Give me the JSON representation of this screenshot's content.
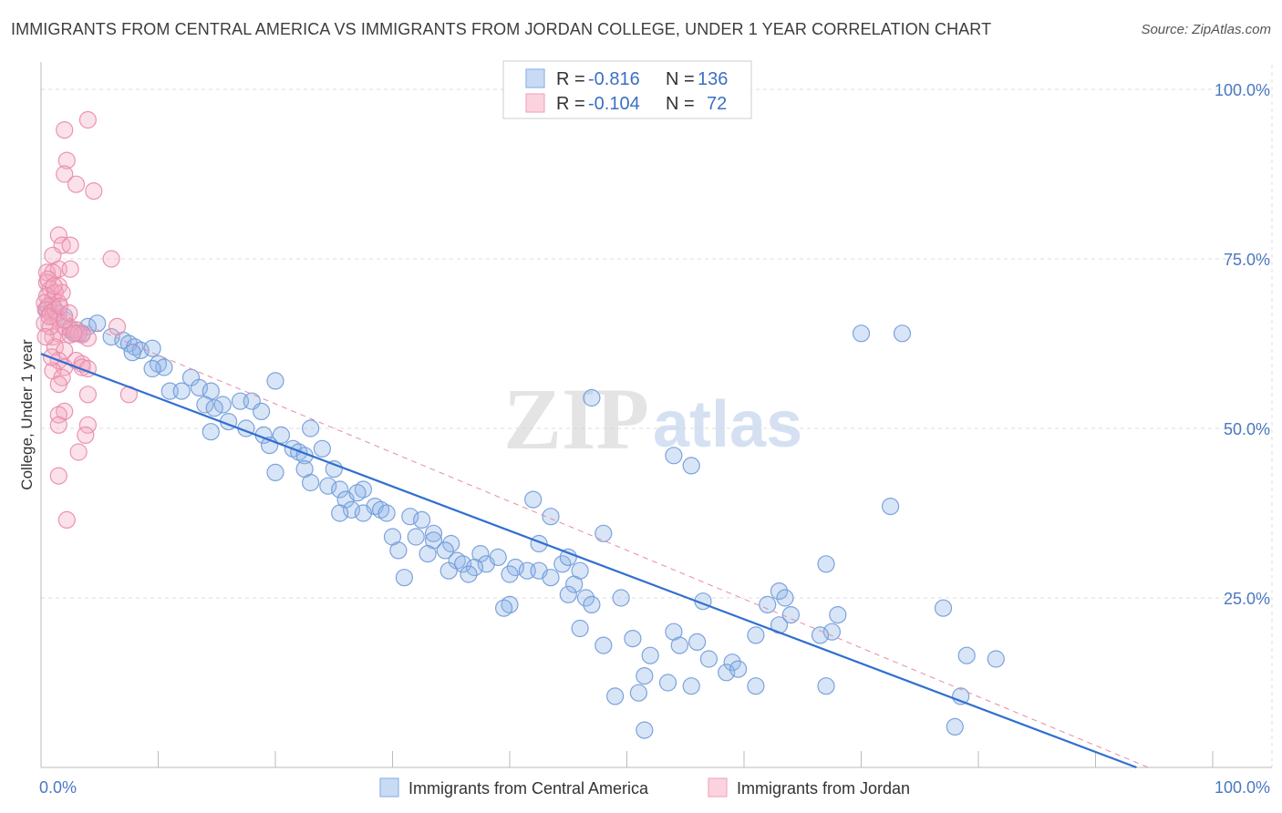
{
  "title": "IMMIGRANTS FROM CENTRAL AMERICA VS IMMIGRANTS FROM JORDAN COLLEGE, UNDER 1 YEAR CORRELATION CHART",
  "source": "Source: ZipAtlas.com",
  "watermark": {
    "zip": "ZIP",
    "atlas": "atlas"
  },
  "chart_data": {
    "type": "scatter",
    "xlabel": "",
    "ylabel": "College, Under 1 year",
    "xlim": [
      0,
      100
    ],
    "ylim": [
      0,
      100
    ],
    "x_tick_labels": [
      {
        "value": 0,
        "label": "0.0%"
      },
      {
        "value": 100,
        "label": "100.0%"
      }
    ],
    "y_tick_labels": [
      {
        "value": 100,
        "label": "100.0%"
      },
      {
        "value": 75,
        "label": "75.0%"
      },
      {
        "value": 50,
        "label": "50.0%"
      },
      {
        "value": 25,
        "label": "25.0%"
      }
    ],
    "grid": true,
    "legend_position": "bottom-center",
    "stats": [
      {
        "r_label": "R =",
        "r": "-0.816",
        "n_label": "N =",
        "n": "136",
        "color": "#8fb4e8"
      },
      {
        "r_label": "R =",
        "r": "-0.104",
        "n_label": "N =",
        "n": "72",
        "color": "#f4a9c0"
      }
    ],
    "series": [
      {
        "name": "Immigrants from Central America",
        "color": "#8fb4e8",
        "stroke": "#6f9ad8",
        "trend": {
          "x": [
            0,
            93.5
          ],
          "y": [
            61,
            0
          ],
          "color": "#2f6fd0",
          "style": "solid"
        },
        "points": [
          [
            0.5,
            67.5
          ],
          [
            1.0,
            68.0
          ],
          [
            1.5,
            67.0
          ],
          [
            2.0,
            66.5
          ],
          [
            2.5,
            64.5
          ],
          [
            3.0,
            64.0
          ],
          [
            4.0,
            65.0
          ],
          [
            4.8,
            65.5
          ],
          [
            3.5,
            64.0
          ],
          [
            6.0,
            63.5
          ],
          [
            7.0,
            63.0
          ],
          [
            7.5,
            62.5
          ],
          [
            8.0,
            62.0
          ],
          [
            8.5,
            61.5
          ],
          [
            9.5,
            61.8
          ],
          [
            7.8,
            61.2
          ],
          [
            10.0,
            59.5
          ],
          [
            10.5,
            59.0
          ],
          [
            9.5,
            58.8
          ],
          [
            12.8,
            57.5
          ],
          [
            13.5,
            56.0
          ],
          [
            11.0,
            55.5
          ],
          [
            12.0,
            55.5
          ],
          [
            14.5,
            55.5
          ],
          [
            20.0,
            57.0
          ],
          [
            14.0,
            53.5
          ],
          [
            15.5,
            53.5
          ],
          [
            17.0,
            54.0
          ],
          [
            18.0,
            54.0
          ],
          [
            14.8,
            53.0
          ],
          [
            18.8,
            52.5
          ],
          [
            16.0,
            51.0
          ],
          [
            17.5,
            50.0
          ],
          [
            20.5,
            49.0
          ],
          [
            14.5,
            49.5
          ],
          [
            19.0,
            49.0
          ],
          [
            23.0,
            50.0
          ],
          [
            19.5,
            47.5
          ],
          [
            21.5,
            47.0
          ],
          [
            22.0,
            46.5
          ],
          [
            22.5,
            46.0
          ],
          [
            24.0,
            47.0
          ],
          [
            20.0,
            43.5
          ],
          [
            22.5,
            44.0
          ],
          [
            25.0,
            44.0
          ],
          [
            23.0,
            42.0
          ],
          [
            24.5,
            41.5
          ],
          [
            25.5,
            41.0
          ],
          [
            27.5,
            41.0
          ],
          [
            26.0,
            39.5
          ],
          [
            27.0,
            40.5
          ],
          [
            26.5,
            38.0
          ],
          [
            28.5,
            38.5
          ],
          [
            27.5,
            37.5
          ],
          [
            29.0,
            38.0
          ],
          [
            25.5,
            37.5
          ],
          [
            29.5,
            37.5
          ],
          [
            31.5,
            37.0
          ],
          [
            32.5,
            36.5
          ],
          [
            30.0,
            34.0
          ],
          [
            32.0,
            34.0
          ],
          [
            33.5,
            34.5
          ],
          [
            33.5,
            33.5
          ],
          [
            35.0,
            33.0
          ],
          [
            30.5,
            32.0
          ],
          [
            33.0,
            31.5
          ],
          [
            34.5,
            32.0
          ],
          [
            35.5,
            30.5
          ],
          [
            36.0,
            30.0
          ],
          [
            37.5,
            31.5
          ],
          [
            38.0,
            30.0
          ],
          [
            39.0,
            31.0
          ],
          [
            40.5,
            29.5
          ],
          [
            37.0,
            29.5
          ],
          [
            34.8,
            29.0
          ],
          [
            36.5,
            28.5
          ],
          [
            31.0,
            28.0
          ],
          [
            41.5,
            29.0
          ],
          [
            40.0,
            28.5
          ],
          [
            42.5,
            29.0
          ],
          [
            42.5,
            33.0
          ],
          [
            44.5,
            30.0
          ],
          [
            45.0,
            31.0
          ],
          [
            43.5,
            28.0
          ],
          [
            46.0,
            29.0
          ],
          [
            45.5,
            27.0
          ],
          [
            42.0,
            39.5
          ],
          [
            43.5,
            37.0
          ],
          [
            48.0,
            34.5
          ],
          [
            45.0,
            25.5
          ],
          [
            46.5,
            25.0
          ],
          [
            47.0,
            24.0
          ],
          [
            49.5,
            25.0
          ],
          [
            40.0,
            24.0
          ],
          [
            39.5,
            23.5
          ],
          [
            46.0,
            20.5
          ],
          [
            48.0,
            18.0
          ],
          [
            50.5,
            19.0
          ],
          [
            54.0,
            20.0
          ],
          [
            54.5,
            18.0
          ],
          [
            56.0,
            18.5
          ],
          [
            57.0,
            16.0
          ],
          [
            52.0,
            16.5
          ],
          [
            51.5,
            13.5
          ],
          [
            53.5,
            12.5
          ],
          [
            55.5,
            12.0
          ],
          [
            59.0,
            15.5
          ],
          [
            58.5,
            14.0
          ],
          [
            59.5,
            14.5
          ],
          [
            61.0,
            12.0
          ],
          [
            51.0,
            11.0
          ],
          [
            49.0,
            10.5
          ],
          [
            51.5,
            5.5
          ],
          [
            56.5,
            24.5
          ],
          [
            61.0,
            19.5
          ],
          [
            62.0,
            24.0
          ],
          [
            63.0,
            26.0
          ],
          [
            63.5,
            25.0
          ],
          [
            63.0,
            21.0
          ],
          [
            64.0,
            22.5
          ],
          [
            67.0,
            12.0
          ],
          [
            67.5,
            20.0
          ],
          [
            68.0,
            22.5
          ],
          [
            67.0,
            30.0
          ],
          [
            54.0,
            46.0
          ],
          [
            55.5,
            44.5
          ],
          [
            47.0,
            54.5
          ],
          [
            70.0,
            64.0
          ],
          [
            73.5,
            64.0
          ],
          [
            72.5,
            38.5
          ],
          [
            77.0,
            23.5
          ],
          [
            79.0,
            16.5
          ],
          [
            81.5,
            16.0
          ],
          [
            78.5,
            10.5
          ],
          [
            78.0,
            6.0
          ],
          [
            66.5,
            19.5
          ]
        ]
      },
      {
        "name": "Immigrants from Jordan",
        "color": "#f4a9c0",
        "stroke": "#e98aa8",
        "trend": {
          "x": [
            0,
            94.5
          ],
          "y": [
            68,
            0
          ],
          "color": "#e88aa6",
          "style": "dashed"
        },
        "points": [
          [
            4.0,
            95.5
          ],
          [
            2.0,
            94.0
          ],
          [
            2.2,
            89.5
          ],
          [
            2.0,
            87.5
          ],
          [
            3.0,
            86.0
          ],
          [
            4.5,
            85.0
          ],
          [
            1.5,
            78.5
          ],
          [
            1.8,
            77.0
          ],
          [
            2.5,
            77.0
          ],
          [
            1.0,
            75.5
          ],
          [
            6.0,
            75.0
          ],
          [
            1.5,
            73.5
          ],
          [
            2.5,
            73.5
          ],
          [
            0.5,
            73.0
          ],
          [
            1.0,
            73.0
          ],
          [
            0.5,
            71.5
          ],
          [
            1.5,
            71.0
          ],
          [
            0.8,
            70.5
          ],
          [
            1.2,
            70.0
          ],
          [
            0.5,
            69.5
          ],
          [
            1.0,
            69.0
          ],
          [
            1.5,
            68.5
          ],
          [
            0.3,
            68.5
          ],
          [
            0.6,
            68.0
          ],
          [
            0.4,
            67.5
          ],
          [
            0.8,
            67.0
          ],
          [
            1.0,
            66.5
          ],
          [
            1.5,
            66.0
          ],
          [
            0.3,
            65.5
          ],
          [
            2.0,
            65.0
          ],
          [
            2.5,
            64.8
          ],
          [
            3.0,
            64.5
          ],
          [
            1.5,
            64.0
          ],
          [
            2.5,
            63.8
          ],
          [
            3.5,
            63.8
          ],
          [
            1.0,
            63.5
          ],
          [
            4.0,
            63.3
          ],
          [
            6.5,
            65.0
          ],
          [
            1.2,
            62.0
          ],
          [
            2.0,
            61.5
          ],
          [
            1.5,
            60.0
          ],
          [
            3.0,
            60.0
          ],
          [
            3.5,
            59.5
          ],
          [
            2.0,
            59.0
          ],
          [
            3.5,
            59.0
          ],
          [
            4.0,
            58.8
          ],
          [
            1.0,
            58.5
          ],
          [
            1.8,
            57.5
          ],
          [
            1.5,
            56.5
          ],
          [
            4.0,
            55.0
          ],
          [
            7.5,
            55.0
          ],
          [
            2.0,
            52.5
          ],
          [
            1.5,
            52.0
          ],
          [
            1.5,
            50.5
          ],
          [
            4.0,
            50.5
          ],
          [
            3.8,
            49.0
          ],
          [
            3.2,
            46.5
          ],
          [
            1.5,
            43.0
          ],
          [
            2.2,
            36.5
          ],
          [
            0.8,
            65.0
          ],
          [
            1.2,
            67.5
          ],
          [
            0.6,
            72.0
          ],
          [
            2.0,
            66.0
          ],
          [
            1.8,
            70.0
          ],
          [
            3.2,
            64.0
          ],
          [
            0.4,
            63.5
          ],
          [
            2.8,
            64.0
          ],
          [
            1.6,
            68.0
          ],
          [
            0.9,
            60.5
          ],
          [
            2.4,
            67.0
          ],
          [
            1.1,
            71.0
          ],
          [
            0.7,
            66.5
          ]
        ]
      }
    ]
  }
}
